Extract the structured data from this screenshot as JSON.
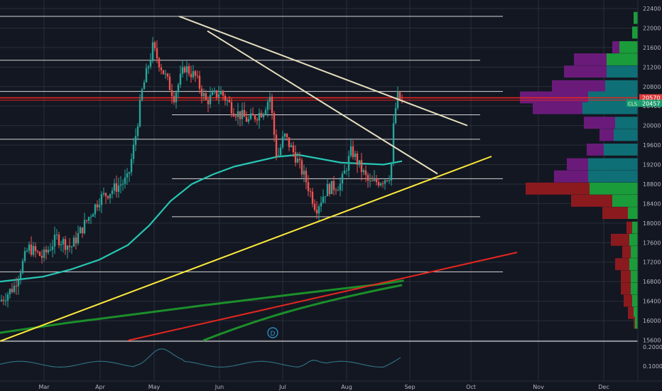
{
  "chart_data": {
    "type": "line",
    "title": "",
    "ylim": [
      15700,
      22500
    ],
    "y_axis_ticks": [
      "22400",
      "22000",
      "21600",
      "21200",
      "20800",
      "20400",
      "20000",
      "19600",
      "19200",
      "18800",
      "18400",
      "18000",
      "17600",
      "17200",
      "16800",
      "16400",
      "16000",
      "15600"
    ],
    "x_axis_ticks": [
      "Mar",
      "Apr",
      "May",
      "Jun",
      "Jul",
      "Aug",
      "Sep",
      "Oct",
      "Nov",
      "Dec"
    ],
    "current_price_labels": [
      {
        "text": "20570",
        "color": "#e03a3a"
      },
      {
        "text": "20457",
        "color": "#1f9c6e",
        "prefix": "CLS"
      }
    ],
    "indicator_marker": "D",
    "oscillator_ticks": [
      "0.2000",
      "0.1000"
    ],
    "horizontal_levels": [
      22240,
      21340,
      20700,
      20570,
      20220,
      19720,
      18910,
      18130,
      17000
    ],
    "trendlines": [
      {
        "name": "falling-resistance-1",
        "color": "#e6e0c0",
        "points": [
          [
            0.0,
            22240
          ],
          [
            0.52,
            20000
          ]
        ]
      },
      {
        "name": "falling-resistance-2",
        "color": "#e6e0c0",
        "points": [
          [
            0.04,
            21940
          ],
          [
            0.46,
            19000
          ]
        ]
      },
      {
        "name": "rising-support-yellow",
        "color": "#ffeb3b",
        "points": [
          [
            -0.5,
            15780
          ],
          [
            0.6,
            19380
          ]
        ]
      },
      {
        "name": "rising-support-red",
        "color": "#e52620",
        "points": [
          [
            -0.1,
            15760
          ],
          [
            0.6,
            17380
          ]
        ]
      }
    ],
    "moving_averages": [
      {
        "name": "ma-teal",
        "color": "#26c6b3"
      },
      {
        "name": "ma-green",
        "color": "#1b8f2a"
      }
    ],
    "colors": {
      "background": "#131722",
      "up_candle": "#26a69a",
      "down_candle": "#ef5350",
      "grid": "#2a2e39",
      "level_line": "#d6d6d6",
      "volume_up": "#0f7d7d",
      "volume_down": "#6a1b7a",
      "oscillator": "#2d6f7d"
    }
  }
}
